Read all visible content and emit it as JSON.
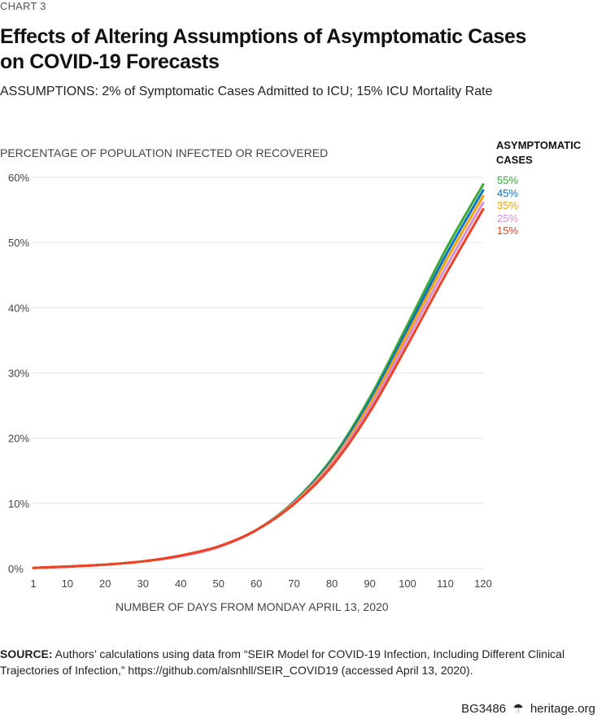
{
  "header": {
    "chart_label": "CHART 3",
    "title_line1": "Effects of Altering Assumptions of Asymptomatic Cases",
    "title_line2": "on COVID-19 Forecasts",
    "subtitle": "ASSUMPTIONS: 2% of Symptomatic Cases Admitted to ICU; 15% ICU Mortality Rate"
  },
  "footer": {
    "source_label": "SOURCE:",
    "source_text": " Authors’ calculations using data from “SEIR Model for COVID-19 Infection, Including Different Clinical Trajectories of Infection,” https://github.com/alsnhll/SEIR_COVID19 (accessed April 13, 2020).",
    "code": "BG3486",
    "bell_icon": "liberty-bell-icon",
    "site": "heritage.org"
  },
  "chart_data": {
    "type": "line",
    "title": "Effects of Altering Assumptions of Asymptomatic Cases on COVID-19 Forecasts",
    "subtitle": "ASSUMPTIONS: 2% of Symptomatic Cases Admitted to ICU; 15% ICU Mortality Rate",
    "xlabel": "NUMBER OF DAYS FROM MONDAY APRIL 13, 2020",
    "ylabel": "PERCENTAGE OF POPULATION INFECTED OR RECOVERED",
    "xlim": [
      1,
      120
    ],
    "ylim": [
      0,
      60
    ],
    "x_ticks": [
      1,
      10,
      20,
      30,
      40,
      50,
      60,
      70,
      80,
      90,
      100,
      110,
      120
    ],
    "y_ticks": [
      0,
      10,
      20,
      30,
      40,
      50,
      60
    ],
    "y_tick_labels": [
      "0%",
      "10%",
      "20%",
      "30%",
      "40%",
      "50%",
      "60%"
    ],
    "grid": "horizontal",
    "legend_title": "ASYMPTOMATIC CASES",
    "legend_position": "right",
    "x": [
      1,
      10,
      20,
      30,
      40,
      50,
      60,
      70,
      80,
      90,
      100,
      110,
      120
    ],
    "series": [
      {
        "name": "55%",
        "color": "#3aaa35",
        "values": [
          0.1,
          0.3,
          0.6,
          1.1,
          1.9,
          3.3,
          5.9,
          10.3,
          16.9,
          26.2,
          37.4,
          48.8,
          58.9
        ]
      },
      {
        "name": "45%",
        "color": "#0a73c8",
        "values": [
          0.1,
          0.3,
          0.6,
          1.1,
          1.9,
          3.3,
          5.9,
          10.2,
          16.6,
          25.7,
          36.7,
          47.9,
          58.0
        ]
      },
      {
        "name": "35%",
        "color": "#f5a20a",
        "values": [
          0.1,
          0.3,
          0.6,
          1.1,
          1.9,
          3.3,
          5.9,
          10.1,
          16.3,
          25.2,
          36.0,
          47.0,
          57.1
        ]
      },
      {
        "name": "25%",
        "color": "#d68ed0",
        "values": [
          0.1,
          0.3,
          0.6,
          1.1,
          1.9,
          3.3,
          5.9,
          10.0,
          16.0,
          24.6,
          35.2,
          46.0,
          56.1
        ]
      },
      {
        "name": "15%",
        "color": "#ef4123",
        "values": [
          0.1,
          0.3,
          0.6,
          1.1,
          2.0,
          3.4,
          5.9,
          9.9,
          15.7,
          24.0,
          34.3,
          45.0,
          55.1
        ]
      }
    ]
  }
}
